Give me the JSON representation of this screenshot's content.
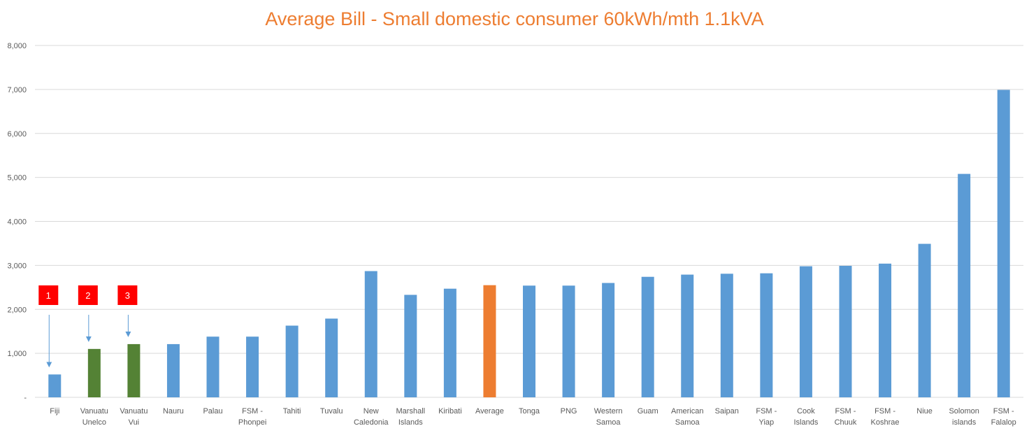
{
  "chart_data": {
    "type": "bar",
    "title": "Average Bill - Small domestic consumer 60kWh/mth 1.1kVA",
    "xlabel": "",
    "ylabel": "",
    "ylim": [
      0,
      8000
    ],
    "yticks": [
      0,
      1000,
      2000,
      3000,
      4000,
      5000,
      6000,
      7000,
      8000
    ],
    "ytick_labels": [
      "-",
      "1,000",
      "2,000",
      "3,000",
      "4,000",
      "5,000",
      "6,000",
      "7,000",
      "8,000"
    ],
    "grid": true,
    "legend": "none",
    "categories": [
      "Fiji",
      "Vanuatu Unelco",
      "Vanuatu Vui",
      "Nauru",
      "Palau",
      "FSM - Phonpei",
      "Tahiti",
      "Tuvalu",
      "New Caledonia",
      "Marshall Islands",
      "Kiribati",
      "Average",
      "Tonga",
      "PNG",
      "Western Samoa",
      "Guam",
      "American Samoa",
      "Saipan",
      "FSM - Yiap",
      "Cook Islands",
      "FSM - Chuuk",
      "FSM - Koshrae",
      "Niue",
      "Solomon islands",
      "FSM - Falalop"
    ],
    "category_lines": [
      [
        "Fiji"
      ],
      [
        "Vanuatu",
        "Unelco"
      ],
      [
        "Vanuatu",
        "Vui"
      ],
      [
        "Nauru"
      ],
      [
        "Palau"
      ],
      [
        "FSM -",
        "Phonpei"
      ],
      [
        "Tahiti"
      ],
      [
        "Tuvalu"
      ],
      [
        "New",
        "Caledonia"
      ],
      [
        "Marshall",
        "Islands"
      ],
      [
        "Kiribati"
      ],
      [
        "Average"
      ],
      [
        "Tonga"
      ],
      [
        "PNG"
      ],
      [
        "Western",
        "Samoa"
      ],
      [
        "Guam"
      ],
      [
        "American",
        "Samoa"
      ],
      [
        "Saipan"
      ],
      [
        "FSM -",
        "Yiap"
      ],
      [
        "Cook",
        "Islands"
      ],
      [
        "FSM -",
        "Chuuk"
      ],
      [
        "FSM -",
        "Koshrae"
      ],
      [
        "Niue"
      ],
      [
        "Solomon",
        "islands"
      ],
      [
        "FSM -",
        "Falalop"
      ]
    ],
    "values": [
      520,
      1100,
      1210,
      1210,
      1380,
      1380,
      1630,
      1790,
      2870,
      2330,
      2470,
      2550,
      2540,
      2540,
      2600,
      2740,
      2790,
      2810,
      2820,
      2980,
      2990,
      3040,
      3490,
      5080,
      6990
    ],
    "bar_colors": [
      "#5b9bd5",
      "#548235",
      "#548235",
      "#5b9bd5",
      "#5b9bd5",
      "#5b9bd5",
      "#5b9bd5",
      "#5b9bd5",
      "#5b9bd5",
      "#5b9bd5",
      "#5b9bd5",
      "#ed7d31",
      "#5b9bd5",
      "#5b9bd5",
      "#5b9bd5",
      "#5b9bd5",
      "#5b9bd5",
      "#5b9bd5",
      "#5b9bd5",
      "#5b9bd5",
      "#5b9bd5",
      "#5b9bd5",
      "#5b9bd5",
      "#5b9bd5",
      "#5b9bd5"
    ],
    "annotations": [
      {
        "text": "1",
        "category_index": 0
      },
      {
        "text": "2",
        "category_index": 1
      },
      {
        "text": "3",
        "category_index": 2
      }
    ]
  },
  "colors": {
    "title": "#ed7d31",
    "default_bar": "#5b9bd5",
    "highlight_bar": "#548235",
    "average_bar": "#ed7d31",
    "annotation_box": "#ff0000",
    "annotation_arrow": "#5b9bd5",
    "gridline": "#d9d9d9",
    "tick_text": "#595959"
  }
}
